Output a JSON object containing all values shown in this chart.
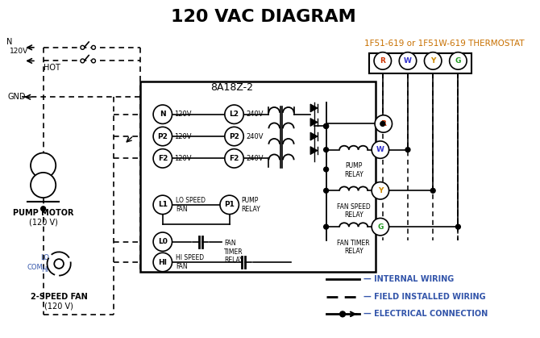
{
  "title": "120 VAC DIAGRAM",
  "title_fontsize": 16,
  "title_color": "#000000",
  "thermostat_label": "1F51-619 or 1F51W-619 THERMOSTAT",
  "thermostat_label_color": "#c87000",
  "thermostat_terminals": [
    "R",
    "W",
    "Y",
    "G"
  ],
  "thermostat_terminal_colors": [
    "#cc3300",
    "#3333cc",
    "#cc8800",
    "#229922"
  ],
  "control_box_label": "8A18Z-2",
  "legend_color": "#3355aa",
  "bg_color": "#ffffff",
  "line_color": "#000000",
  "pump_motor_label": "PUMP MOTOR",
  "pump_motor_v": "(120 V)",
  "fan_label": "2-SPEED FAN",
  "fan_v": "(120 V)"
}
